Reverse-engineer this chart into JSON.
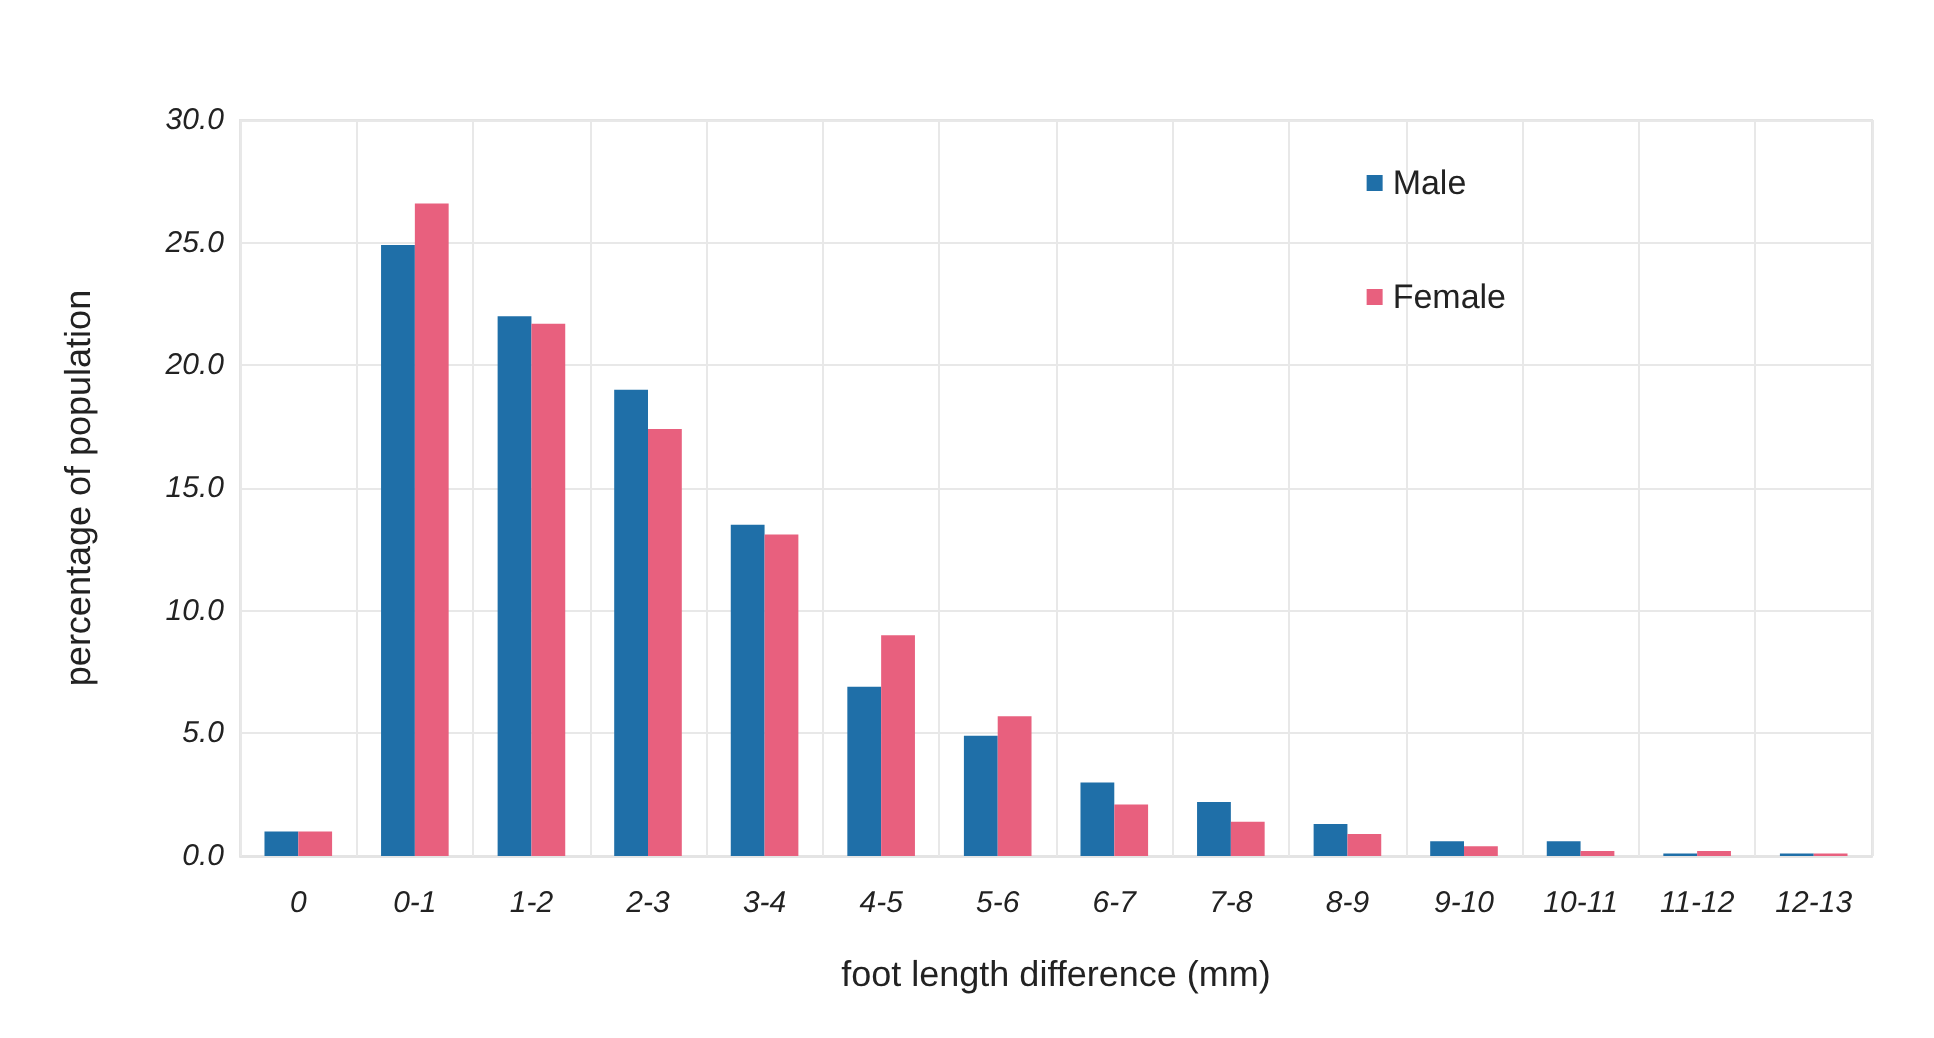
{
  "chart_data": {
    "type": "bar",
    "xlabel": "foot length difference (mm)",
    "ylabel": "percentage of population",
    "categories": [
      "0",
      "0-1",
      "1-2",
      "2-3",
      "3-4",
      "4-5",
      "5-6",
      "6-7",
      "7-8",
      "8-9",
      "9-10",
      "10-11",
      "11-12",
      "12-13"
    ],
    "series": [
      {
        "name": "Male",
        "color": "#1f6fa8",
        "values": [
          1.0,
          24.9,
          22.0,
          19.0,
          13.5,
          6.9,
          4.9,
          3.0,
          2.2,
          1.3,
          0.6,
          0.6,
          0.1,
          0.1
        ]
      },
      {
        "name": "Female",
        "color": "#e8607e",
        "values": [
          1.0,
          26.6,
          21.7,
          17.4,
          13.1,
          9.0,
          5.7,
          2.1,
          1.4,
          0.9,
          0.4,
          0.2,
          0.2,
          0.1
        ]
      }
    ],
    "ylim": [
      0,
      30
    ],
    "yticks": [
      {
        "value": 0,
        "label": "0.0"
      },
      {
        "value": 5,
        "label": "5.0"
      },
      {
        "value": 10,
        "label": "10.0"
      },
      {
        "value": 15,
        "label": "15.0"
      },
      {
        "value": 20,
        "label": "20.0"
      },
      {
        "value": 25,
        "label": "25.0"
      },
      {
        "value": 30,
        "label": "30.0"
      }
    ],
    "grid": true,
    "legend": "top right"
  }
}
